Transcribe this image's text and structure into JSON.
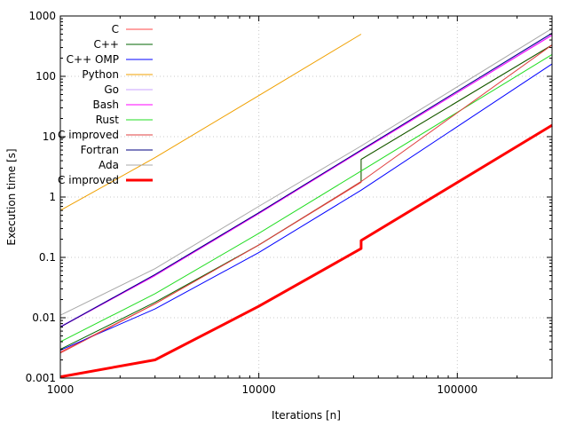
{
  "chart_data": {
    "type": "line",
    "xlabel": "Iterations [n]",
    "ylabel": "Execution time [s]",
    "x_scale": "log",
    "y_scale": "log",
    "xlim": [
      1000,
      300000
    ],
    "ylim": [
      0.001,
      1000
    ],
    "x_ticks": [
      1000,
      10000,
      100000
    ],
    "x_tick_labels": [
      "1000",
      "10000",
      "100000"
    ],
    "y_ticks": [
      0.001,
      0.01,
      0.1,
      1,
      10,
      100,
      1000
    ],
    "y_tick_labels": [
      "0.001",
      "0.01",
      "0.1",
      "1",
      "10",
      "100",
      "1000"
    ],
    "grid": true,
    "legend_position": "top-left",
    "series": [
      {
        "name": "C",
        "color": "#ff4444",
        "width": 1,
        "x": [
          1000,
          3000,
          10000,
          32768,
          32768,
          300000
        ],
        "y": [
          0.0027,
          0.017,
          0.16,
          1.75,
          4.2,
          330
        ]
      },
      {
        "name": "C++",
        "color": "#006400",
        "width": 1,
        "x": [
          1000,
          3000,
          10000,
          32768,
          32768,
          300000
        ],
        "y": [
          0.003,
          0.018,
          0.16,
          1.8,
          4.2,
          330
        ]
      },
      {
        "name": "C++ OMP",
        "color": "#0000ff",
        "width": 1,
        "x": [
          1000,
          3000,
          10000,
          32768,
          32768,
          300000
        ],
        "y": [
          0.0029,
          0.014,
          0.12,
          1.3,
          1.3,
          160
        ]
      },
      {
        "name": "Python",
        "color": "#f0a000",
        "width": 1,
        "x": [
          1000,
          3000,
          10000,
          32768
        ],
        "y": [
          0.6,
          4.5,
          48,
          500
        ]
      },
      {
        "name": "Go",
        "color": "#c8a0ff",
        "width": 1,
        "x": [
          1000,
          3000,
          10000,
          32768,
          300000
        ],
        "y": [
          0.0072,
          0.052,
          0.55,
          6,
          500
        ]
      },
      {
        "name": "Bash",
        "color": "#ff00ff",
        "width": 1,
        "x": [
          1000,
          3000,
          10000,
          32768,
          300000
        ],
        "y": [
          0.007,
          0.05,
          0.53,
          5.8,
          480
        ]
      },
      {
        "name": "Rust",
        "color": "#22dd22",
        "width": 1,
        "x": [
          1000,
          3000,
          10000,
          32768,
          300000
        ],
        "y": [
          0.004,
          0.025,
          0.25,
          2.7,
          230
        ]
      },
      {
        "name": "C improved",
        "color": "#e04040",
        "width": 1,
        "x": [
          1000,
          3000,
          10000,
          32768,
          300000
        ],
        "y": [
          0.0026,
          0.017,
          0.16,
          1.8,
          330
        ]
      },
      {
        "name": "Fortran",
        "color": "#000080",
        "width": 1,
        "x": [
          1000,
          3000,
          10000,
          32768,
          300000
        ],
        "y": [
          0.007,
          0.052,
          0.55,
          6,
          520
        ]
      },
      {
        "name": "Ada",
        "color": "#a8a8a8",
        "width": 1,
        "x": [
          1000,
          3000,
          10000,
          32768,
          300000
        ],
        "y": [
          0.011,
          0.065,
          0.7,
          7,
          620
        ]
      },
      {
        "name": "C improved",
        "color": "#ff0000",
        "width": 3,
        "x": [
          1000,
          3000,
          10000,
          32768,
          32768,
          300000
        ],
        "y": [
          0.00105,
          0.002,
          0.0155,
          0.14,
          0.19,
          15.5
        ]
      }
    ]
  }
}
